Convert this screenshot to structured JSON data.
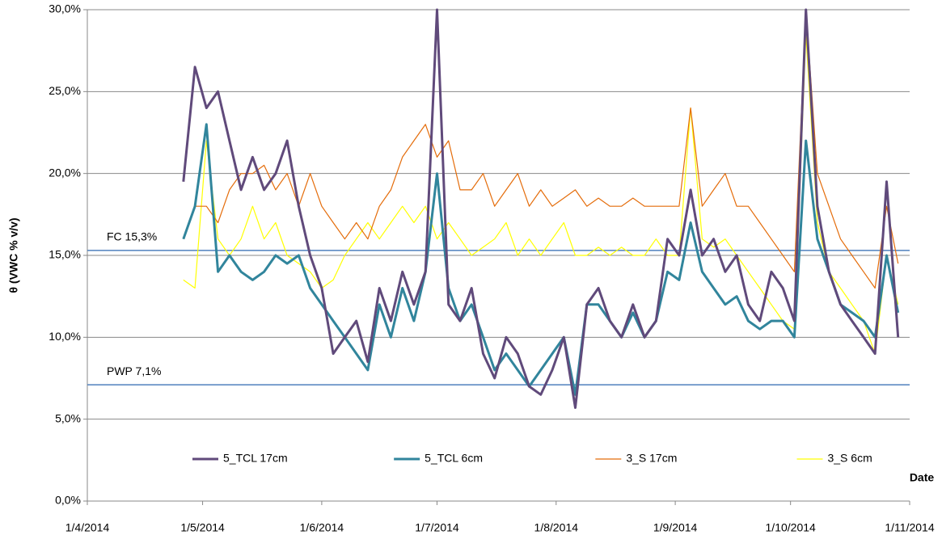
{
  "chart_data": {
    "type": "line",
    "y_label": "θ (VWC % v/v)",
    "x_label": "Date",
    "x": [
      "2014-04-26",
      "2014-04-29",
      "2014-05-02",
      "2014-05-05",
      "2014-05-08",
      "2014-05-11",
      "2014-05-14",
      "2014-05-17",
      "2014-05-20",
      "2014-05-23",
      "2014-05-26",
      "2014-05-29",
      "2014-06-01",
      "2014-06-04",
      "2014-06-07",
      "2014-06-10",
      "2014-06-13",
      "2014-06-16",
      "2014-06-19",
      "2014-06-22",
      "2014-06-25",
      "2014-06-28",
      "2014-07-01",
      "2014-07-04",
      "2014-07-07",
      "2014-07-10",
      "2014-07-13",
      "2014-07-16",
      "2014-07-19",
      "2014-07-22",
      "2014-07-25",
      "2014-07-28",
      "2014-07-31",
      "2014-08-03",
      "2014-08-06",
      "2014-08-09",
      "2014-08-12",
      "2014-08-15",
      "2014-08-18",
      "2014-08-21",
      "2014-08-24",
      "2014-08-27",
      "2014-08-30",
      "2014-09-02",
      "2014-09-05",
      "2014-09-08",
      "2014-09-11",
      "2014-09-14",
      "2014-09-17",
      "2014-09-20",
      "2014-09-23",
      "2014-09-26",
      "2014-09-29",
      "2014-10-02",
      "2014-10-05",
      "2014-10-08",
      "2014-10-11",
      "2014-10-14",
      "2014-10-17",
      "2014-10-20",
      "2014-10-23",
      "2014-10-26",
      "2014-10-29"
    ],
    "series": [
      {
        "name": "5_TCL 17cm",
        "color": "#604a7b",
        "width": 3,
        "values": [
          19.5,
          26.5,
          24,
          25,
          22,
          19,
          21,
          19,
          20,
          22,
          18,
          15,
          13,
          9,
          10,
          11,
          8.5,
          13,
          11,
          14,
          12,
          14,
          30,
          12,
          11,
          13,
          9,
          7.5,
          10,
          9,
          7,
          6.5,
          8,
          10,
          5.7,
          12,
          13,
          11,
          10,
          12,
          10,
          11,
          16,
          15,
          19,
          15,
          16,
          14,
          15,
          12,
          11,
          14,
          13,
          11,
          30,
          18,
          14,
          12,
          11,
          10,
          9,
          19.5,
          10
        ]
      },
      {
        "name": "5_TCL 6cm",
        "color": "#31859c",
        "width": 3,
        "values": [
          16,
          18,
          23,
          14,
          15,
          14,
          13.5,
          14,
          15,
          14.5,
          15,
          13,
          12,
          11,
          10,
          9,
          8,
          12,
          10,
          13,
          11,
          14,
          20,
          13,
          11,
          12,
          10,
          8,
          9,
          8,
          7,
          8,
          9,
          10,
          6.5,
          12,
          12,
          11,
          10,
          11.5,
          10,
          11,
          14,
          13.5,
          17,
          14,
          13,
          12,
          12.5,
          11,
          10.5,
          11,
          11,
          10,
          22,
          16,
          14,
          12,
          11.5,
          11,
          10,
          15,
          11.5
        ]
      },
      {
        "name": "3_S 17cm",
        "color": "#e46c0a",
        "width": 1.2,
        "values": [
          16,
          18,
          18,
          17,
          19,
          20,
          20,
          20.5,
          19,
          20,
          18,
          20,
          18,
          17,
          16,
          17,
          16,
          18,
          19,
          21,
          22,
          23,
          21,
          22,
          19,
          19,
          20,
          18,
          19,
          20,
          18,
          19,
          18,
          18.5,
          19,
          18,
          18.5,
          18,
          18,
          18.5,
          18,
          18,
          18,
          18,
          24,
          18,
          19,
          20,
          18,
          18,
          17,
          16,
          15,
          14,
          30,
          20,
          18,
          16,
          15,
          14,
          13,
          18,
          14.5
        ]
      },
      {
        "name": "3_S 6cm",
        "color": "#ffff00",
        "width": 1.2,
        "values": [
          13.5,
          13,
          22,
          16,
          15,
          16,
          18,
          16,
          17,
          15,
          14.5,
          14,
          13,
          13.5,
          15,
          16,
          17,
          16,
          17,
          18,
          17,
          18,
          16,
          17,
          16,
          15,
          15.5,
          16,
          17,
          15,
          16,
          15,
          16,
          17,
          15,
          15,
          15.5,
          15,
          15.5,
          15,
          15,
          16,
          15,
          15,
          24,
          16,
          15.5,
          16,
          15,
          14,
          13,
          12,
          11,
          10.5,
          28.5,
          17,
          14,
          13,
          12,
          11,
          9,
          15,
          12
        ]
      }
    ],
    "reference_lines": [
      {
        "label": "FC 15,3%",
        "value": 15.3,
        "color": "#4f81bd"
      },
      {
        "label": "PWP 7,1%",
        "value": 7.1,
        "color": "#4f81bd"
      }
    ],
    "xlim": [
      "2014-04-01",
      "2014-11-01"
    ],
    "xticks": [
      {
        "value": "2014-04-01",
        "label": "1/4/2014"
      },
      {
        "value": "2014-05-01",
        "label": "1/5/2014"
      },
      {
        "value": "2014-06-01",
        "label": "1/6/2014"
      },
      {
        "value": "2014-07-01",
        "label": "1/7/2014"
      },
      {
        "value": "2014-08-01",
        "label": "1/8/2014"
      },
      {
        "value": "2014-09-01",
        "label": "1/9/2014"
      },
      {
        "value": "2014-10-01",
        "label": "1/10/2014"
      },
      {
        "value": "2014-11-01",
        "label": "1/11/2014"
      }
    ],
    "ylim": [
      0,
      30
    ],
    "yticks": [
      {
        "value": 0,
        "label": "0,0%"
      },
      {
        "value": 5,
        "label": "5,0%"
      },
      {
        "value": 10,
        "label": "10,0%"
      },
      {
        "value": 15,
        "label": "15,0%"
      },
      {
        "value": 20,
        "label": "20,0%"
      },
      {
        "value": 25,
        "label": "25,0%"
      },
      {
        "value": 30,
        "label": "30,0%"
      }
    ],
    "grid": true
  }
}
